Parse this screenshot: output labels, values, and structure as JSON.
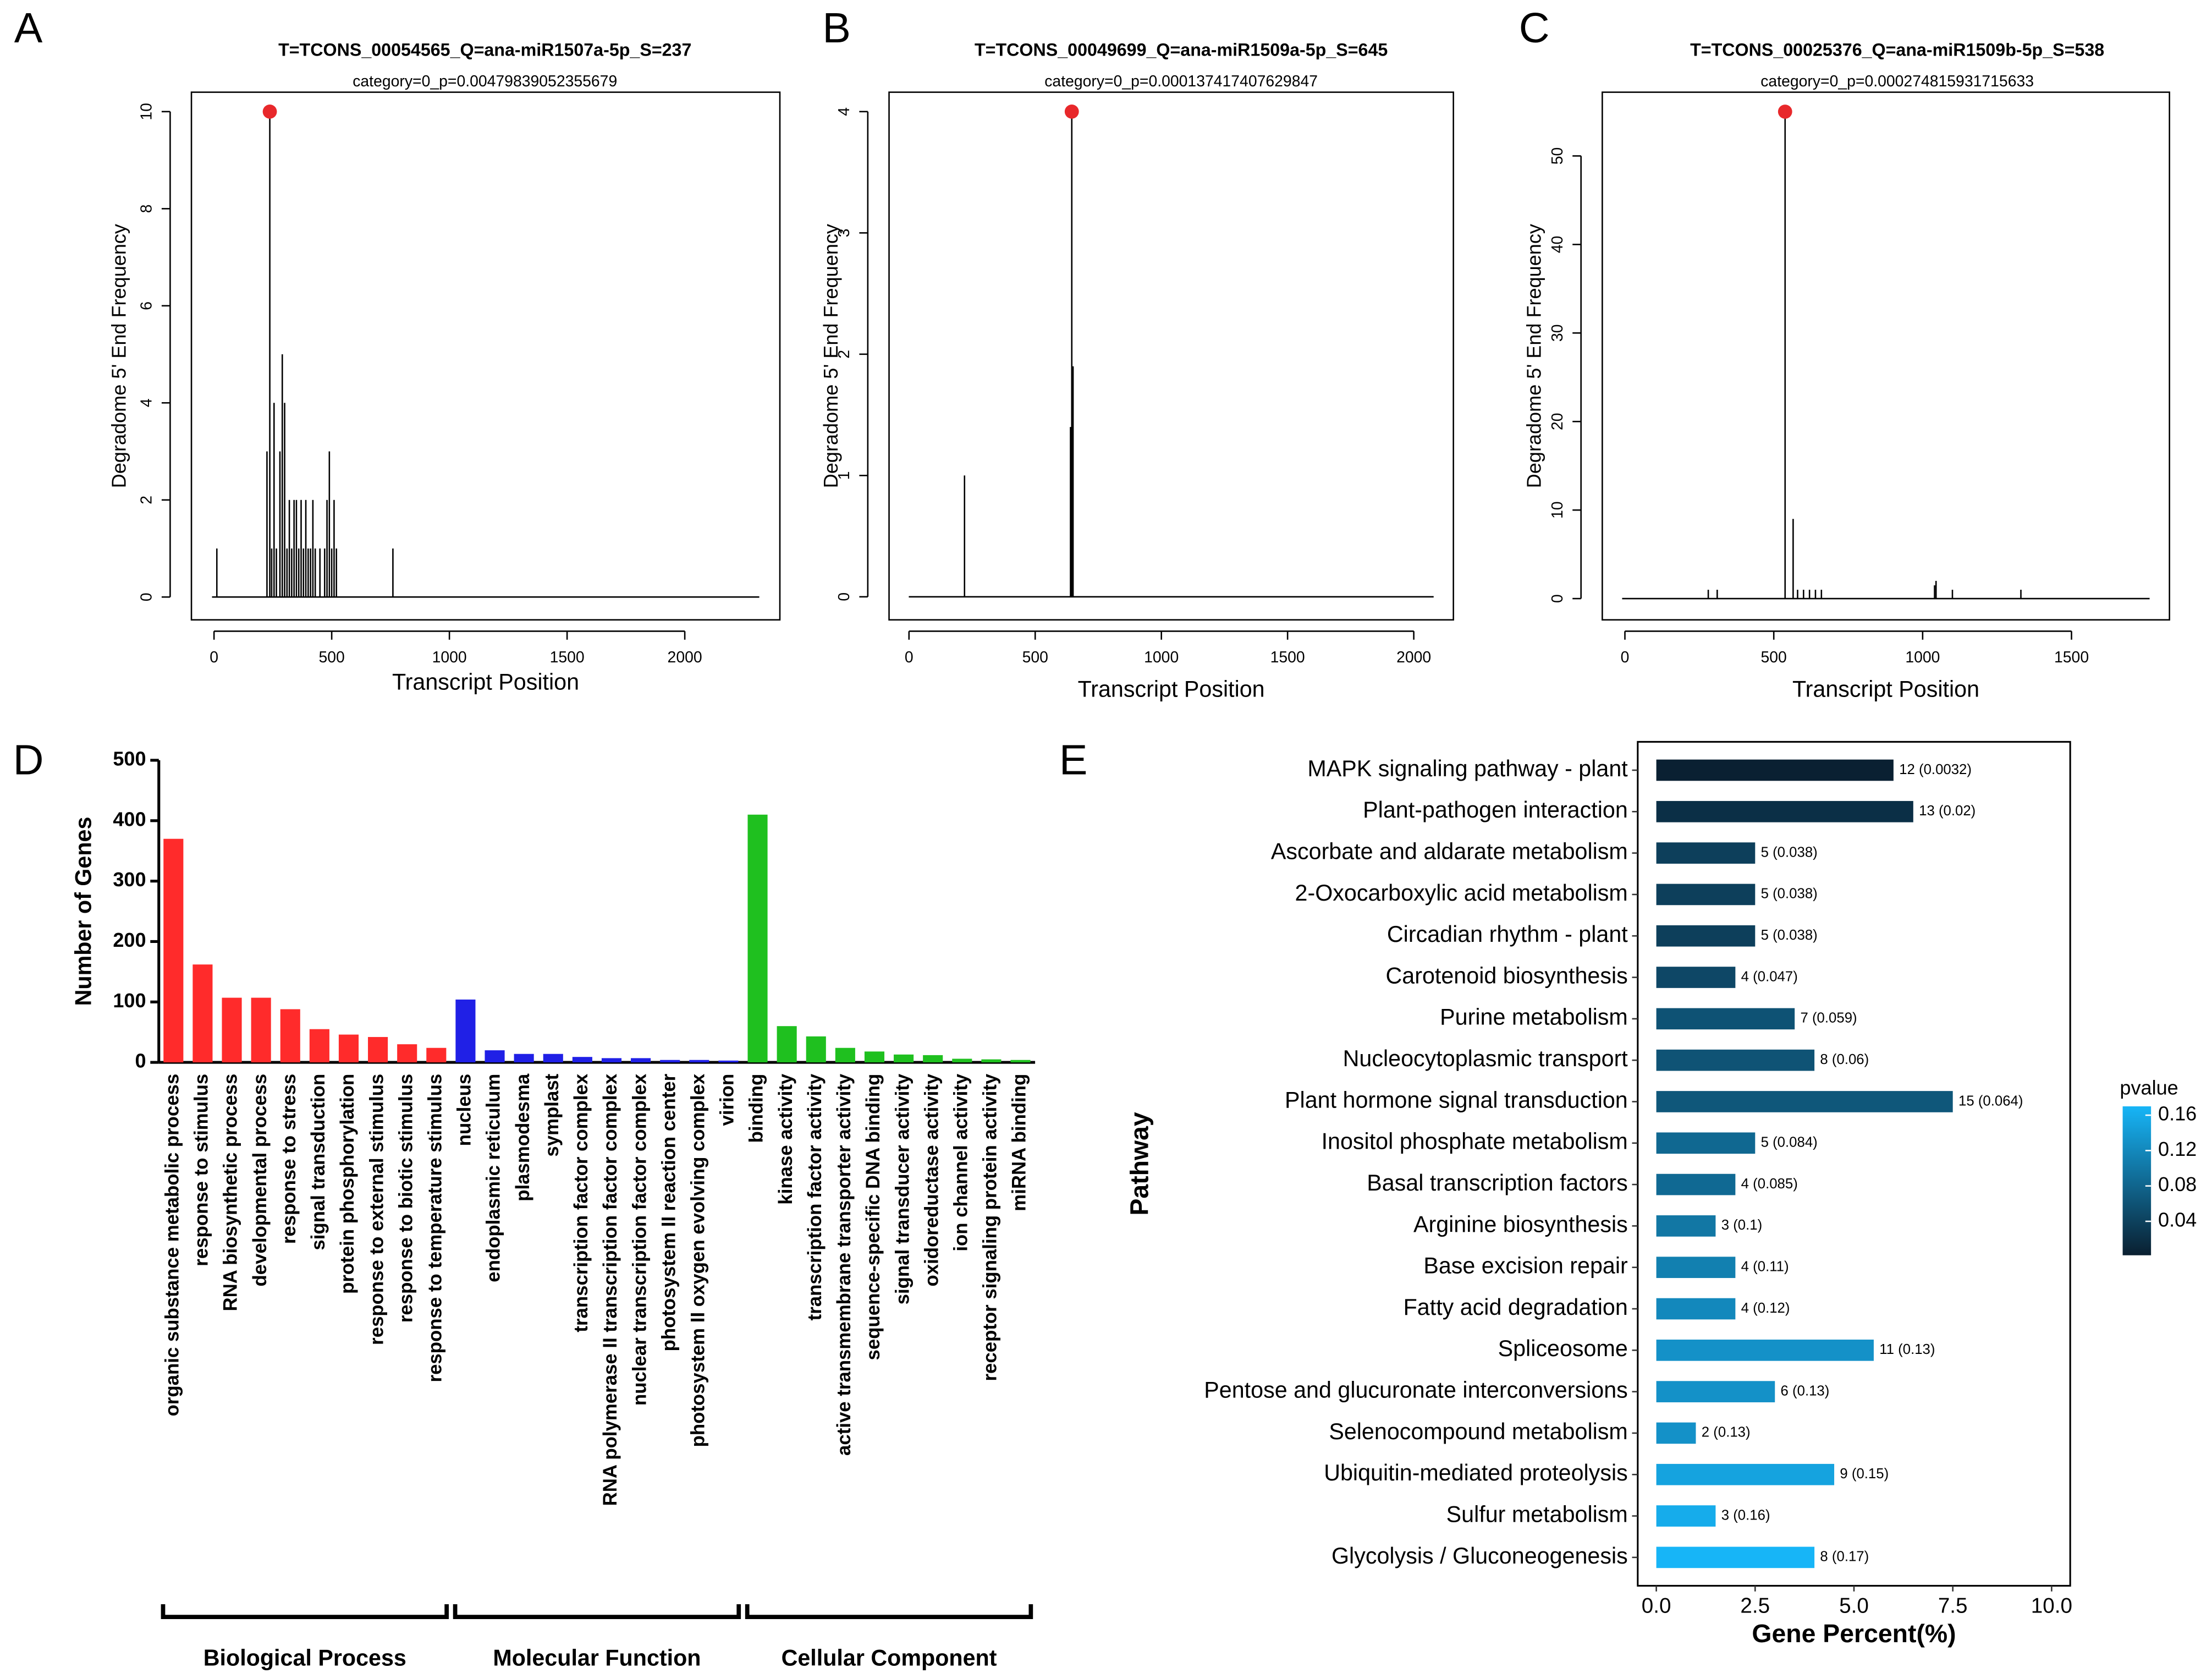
{
  "chart_data": [
    {
      "type": "spike",
      "panel_label": "A",
      "title": "T=TCONS_00054565_Q=ana-miR1507a-5p_S=237",
      "subtitle": "category=0_p=0.00479839052355679",
      "x_label": "Transcript Position",
      "y_label": "Degradome 5' End Frequency",
      "x": [
        12,
        225,
        237,
        245,
        255,
        265,
        280,
        290,
        300,
        310,
        320,
        330,
        340,
        350,
        360,
        370,
        380,
        390,
        400,
        410,
        420,
        430,
        450,
        470,
        480,
        490,
        500,
        510,
        520,
        760
      ],
      "values": [
        1,
        3,
        10,
        1,
        4,
        1,
        3,
        5,
        4,
        1,
        2,
        1,
        2,
        2,
        1,
        2,
        1,
        2,
        1,
        1,
        2,
        1,
        1,
        1,
        2,
        3,
        1,
        2,
        1,
        1
      ],
      "color": "#000000",
      "highlight_index": 2,
      "highlight_color": "#e8282b",
      "xlim": [
        -96,
        2404
      ],
      "xticks": [
        0,
        500,
        1000,
        1500,
        2000
      ],
      "ylim": [
        -0.47,
        10.4
      ],
      "yticks": [
        0,
        2,
        4,
        6,
        8,
        10
      ]
    },
    {
      "type": "spike",
      "panel_label": "B",
      "title": "T=TCONS_00049699_Q=ana-miR1509a-5p_S=645",
      "subtitle": "category=0_p=0.000137417407629847",
      "x_label": "Transcript Position",
      "y_label": "Degradome 5' End Frequency",
      "x": [
        220,
        640,
        645,
        650
      ],
      "values": [
        1,
        1.4,
        4,
        1.9
      ],
      "color": "#000000",
      "highlight_index": 2,
      "highlight_color": "#e8282b",
      "xlim": [
        -79,
        2157
      ],
      "xticks": [
        0,
        500,
        1000,
        1500,
        2000
      ],
      "ylim": [
        -0.19,
        4.16
      ],
      "yticks": [
        0,
        1,
        2,
        3,
        4
      ]
    },
    {
      "type": "spike",
      "panel_label": "C",
      "title": "T=TCONS_00025376_Q=ana-miR1509b-5p_S=538",
      "subtitle": "category=0_p=0.000274815931715633",
      "x_label": "Transcript Position",
      "y_label": "Degradome 5' End Frequency",
      "x": [
        280,
        310,
        538,
        565,
        580,
        600,
        620,
        640,
        660,
        1040,
        1045,
        1100,
        1330
      ],
      "values": [
        1,
        1,
        55,
        9,
        1,
        1,
        1,
        1,
        1,
        1.5,
        2,
        1,
        1
      ],
      "color": "#000000",
      "highlight_index": 2,
      "highlight_color": "#e8282b",
      "xlim": [
        -76,
        1829
      ],
      "xticks": [
        0,
        500,
        1000,
        1500
      ],
      "ylim": [
        -2.4,
        57.2
      ],
      "yticks": [
        0,
        10,
        20,
        30,
        40,
        50
      ]
    },
    {
      "type": "bar",
      "panel_label": "D",
      "y_label": "Number of Genes",
      "ylim": [
        0,
        500
      ],
      "yticks": [
        0,
        100,
        200,
        300,
        400,
        500
      ],
      "series": [
        {
          "name": "Biological Process",
          "color": "#ff2b2b",
          "categories": [
            "organic substance metabolic process",
            "response to stimulus",
            "RNA biosynthetic process",
            "developmental process",
            "response to stress",
            "signal transduction",
            "protein phosphorylation",
            "response to external stimulus",
            "response to biotic stimulus",
            "response to temperature stimulus"
          ],
          "values": [
            370,
            162,
            107,
            107,
            88,
            55,
            46,
            42,
            30,
            24
          ]
        },
        {
          "name": "Molecular Function",
          "color": "#2020e6",
          "categories": [
            "nucleus",
            "endoplasmic reticulum",
            "plasmodesma",
            "symplast",
            "transcription factor complex",
            "RNA polymerase II transcription factor complex",
            "nuclear transcription factor complex",
            "photosystem II reaction center",
            "photosystem II oxygen evolving complex",
            "virion"
          ],
          "values": [
            104,
            20,
            14,
            14,
            9,
            7,
            7,
            4,
            4,
            3
          ]
        },
        {
          "name": "Cellular Component",
          "color": "#1fc01f",
          "categories": [
            "binding",
            "kinase activity",
            "transcription factor activity",
            "active transmembrane transporter activity",
            "sequence-specific DNA binding",
            "signal transducer activity",
            "oxidoreductase activity",
            "ion channel activity",
            "receptor signaling protein activity",
            "miRNA binding"
          ],
          "values": [
            410,
            60,
            43,
            24,
            18,
            13,
            12,
            6,
            5,
            4
          ]
        }
      ]
    },
    {
      "type": "hbar",
      "panel_label": "E",
      "x_label": "Gene Percent(%)",
      "y_label": "Pathway",
      "categories": [
        "MAPK signaling pathway - plant",
        "Plant-pathogen interaction",
        "Ascorbate and aldarate metabolism",
        "2-Oxocarboxylic acid metabolism",
        "Circadian rhythm - plant",
        "Carotenoid biosynthesis",
        "Purine metabolism",
        "Nucleocytoplasmic transport",
        "Plant hormone signal transduction",
        "Inositol phosphate metabolism",
        "Basal transcription factors",
        "Arginine biosynthesis",
        "Base excision repair",
        "Fatty acid degradation",
        "Spliceosome",
        "Pentose and glucuronate interconversions",
        "Selenocompound metabolism",
        "Ubiquitin-mediated proteolysis",
        "Sulfur metabolism",
        "Glycolysis / Gluconeogenesis"
      ],
      "values": [
        6.0,
        6.5,
        2.5,
        2.5,
        2.5,
        2.0,
        3.5,
        4.0,
        7.5,
        2.5,
        2.0,
        1.5,
        2.0,
        2.0,
        5.5,
        3.0,
        1.0,
        4.5,
        1.5,
        4.0
      ],
      "bar_labels": [
        "12 (0.0032)",
        "13 (0.02)",
        "5 (0.038)",
        "5 (0.038)",
        "5 (0.038)",
        "4 (0.047)",
        "7 (0.059)",
        "8 (0.06)",
        "15 (0.064)",
        "5 (0.084)",
        "4 (0.085)",
        "3 (0.1)",
        "4 (0.11)",
        "4 (0.12)",
        "11 (0.13)",
        "6 (0.13)",
        "2 (0.13)",
        "9 (0.15)",
        "3 (0.16)",
        "8 (0.17)"
      ],
      "pvalues": [
        0.0032,
        0.02,
        0.038,
        0.038,
        0.038,
        0.047,
        0.059,
        0.06,
        0.064,
        0.084,
        0.085,
        0.1,
        0.11,
        0.12,
        0.13,
        0.13,
        0.13,
        0.15,
        0.16,
        0.17
      ],
      "xlim": [
        -0.47,
        10.47
      ],
      "xticks": [
        {
          "value": 0,
          "label": "0.0"
        },
        2.5,
        {
          "value": 5,
          "label": "5.0"
        },
        7.5,
        {
          "value": 10,
          "label": "10.0"
        }
      ],
      "colorbar": {
        "title": "pvalue",
        "lim": [
          0.0016,
          0.17
        ],
        "ticks": [
          0.04,
          0.08,
          0.12,
          0.16
        ],
        "colors": [
          "#0a1f30",
          "#17b5f7"
        ]
      }
    }
  ]
}
